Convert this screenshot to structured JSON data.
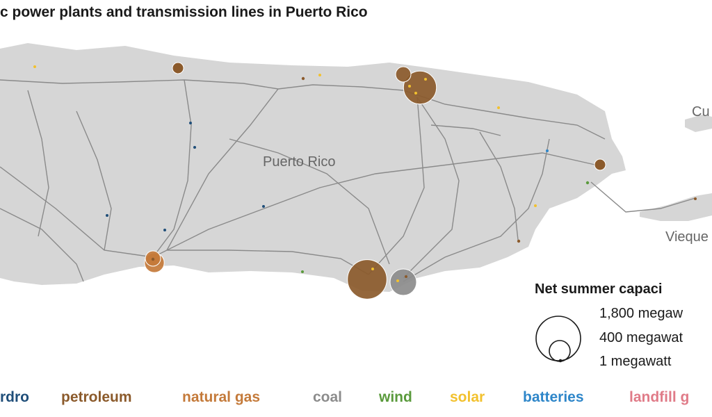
{
  "title": "c power plants and transmission lines in Puerto Rico",
  "places": {
    "main": "Puerto Rico",
    "culebra": "Cu",
    "vieques": "Vieque"
  },
  "size_legend": {
    "title": "Net summer capaci",
    "labels": [
      "1,800 megaw",
      "400 megawat",
      "1 megawatt"
    ]
  },
  "fuels": [
    {
      "key": "hydro",
      "label": "rdro",
      "color": "#1f4e79"
    },
    {
      "key": "petroleum",
      "label": "petroleum",
      "color": "#8b5a2b"
    },
    {
      "key": "natural_gas",
      "label": "natural gas",
      "color": "#c47a3a"
    },
    {
      "key": "coal",
      "label": "coal",
      "color": "#8c8c8c"
    },
    {
      "key": "wind",
      "label": "wind",
      "color": "#5a9a3c"
    },
    {
      "key": "solar",
      "label": "solar",
      "color": "#f2c12e"
    },
    {
      "key": "batteries",
      "label": "batteries",
      "color": "#2e86c9"
    },
    {
      "key": "landfill_gas",
      "label": "landfill g",
      "color": "#e07b88"
    }
  ],
  "colors": {
    "land": "#d6d6d6",
    "lines": "#8a8a8a"
  },
  "plants": [
    {
      "fuel": "solar",
      "capacity_mw": 2
    },
    {
      "fuel": "petroleum",
      "capacity_mw": 80
    },
    {
      "fuel": "petroleum",
      "capacity_mw": 6
    },
    {
      "fuel": "petroleum",
      "capacity_mw": 150
    },
    {
      "fuel": "petroleum",
      "capacity_mw": 700
    },
    {
      "fuel": "solar",
      "capacity_mw": 1
    },
    {
      "fuel": "solar",
      "capacity_mw": 1
    },
    {
      "fuel": "solar",
      "capacity_mw": 1
    },
    {
      "fuel": "hydro",
      "capacity_mw": 1
    },
    {
      "fuel": "hydro",
      "capacity_mw": 1
    },
    {
      "fuel": "hydro",
      "capacity_mw": 2
    },
    {
      "fuel": "hydro",
      "capacity_mw": 1
    },
    {
      "fuel": "hydro",
      "capacity_mw": 1
    },
    {
      "fuel": "natural_gas",
      "capacity_mw": 250
    },
    {
      "fuel": "natural_gas",
      "capacity_mw": 150
    },
    {
      "fuel": "petroleum",
      "capacity_mw": 80
    },
    {
      "fuel": "wind",
      "capacity_mw": 6
    },
    {
      "fuel": "petroleum",
      "capacity_mw": 1000
    },
    {
      "fuel": "solar",
      "capacity_mw": 1
    },
    {
      "fuel": "coal",
      "capacity_mw": 450
    },
    {
      "fuel": "solar",
      "capacity_mw": 1
    },
    {
      "fuel": "petroleum",
      "capacity_mw": 2
    },
    {
      "fuel": "petroleum",
      "capacity_mw": 6
    },
    {
      "fuel": "wind",
      "capacity_mw": 1
    },
    {
      "fuel": "solar",
      "capacity_mw": 1
    },
    {
      "fuel": "petroleum",
      "capacity_mw": 6
    },
    {
      "fuel": "batteries",
      "capacity_mw": 1
    },
    {
      "fuel": "solar",
      "capacity_mw": 1
    },
    {
      "fuel": "solar",
      "capacity_mw": 1
    },
    {
      "fuel": "petroleum",
      "capacity_mw": 1
    }
  ]
}
